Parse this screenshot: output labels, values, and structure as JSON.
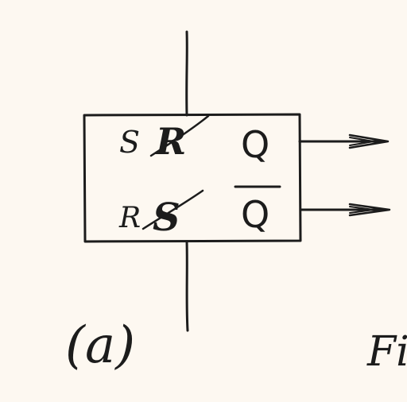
{
  "block": {
    "top_left_label_a": "S",
    "top_left_label_b": "R",
    "top_right_output": "Q",
    "bottom_left_label_a": "R",
    "bottom_left_label_b": "S",
    "bottom_right_output": "Q"
  },
  "caption": "(a)",
  "figure_label_partial": "Fi",
  "colors": {
    "ink": "#1c1c1c",
    "paper": "#fdf8f1"
  }
}
